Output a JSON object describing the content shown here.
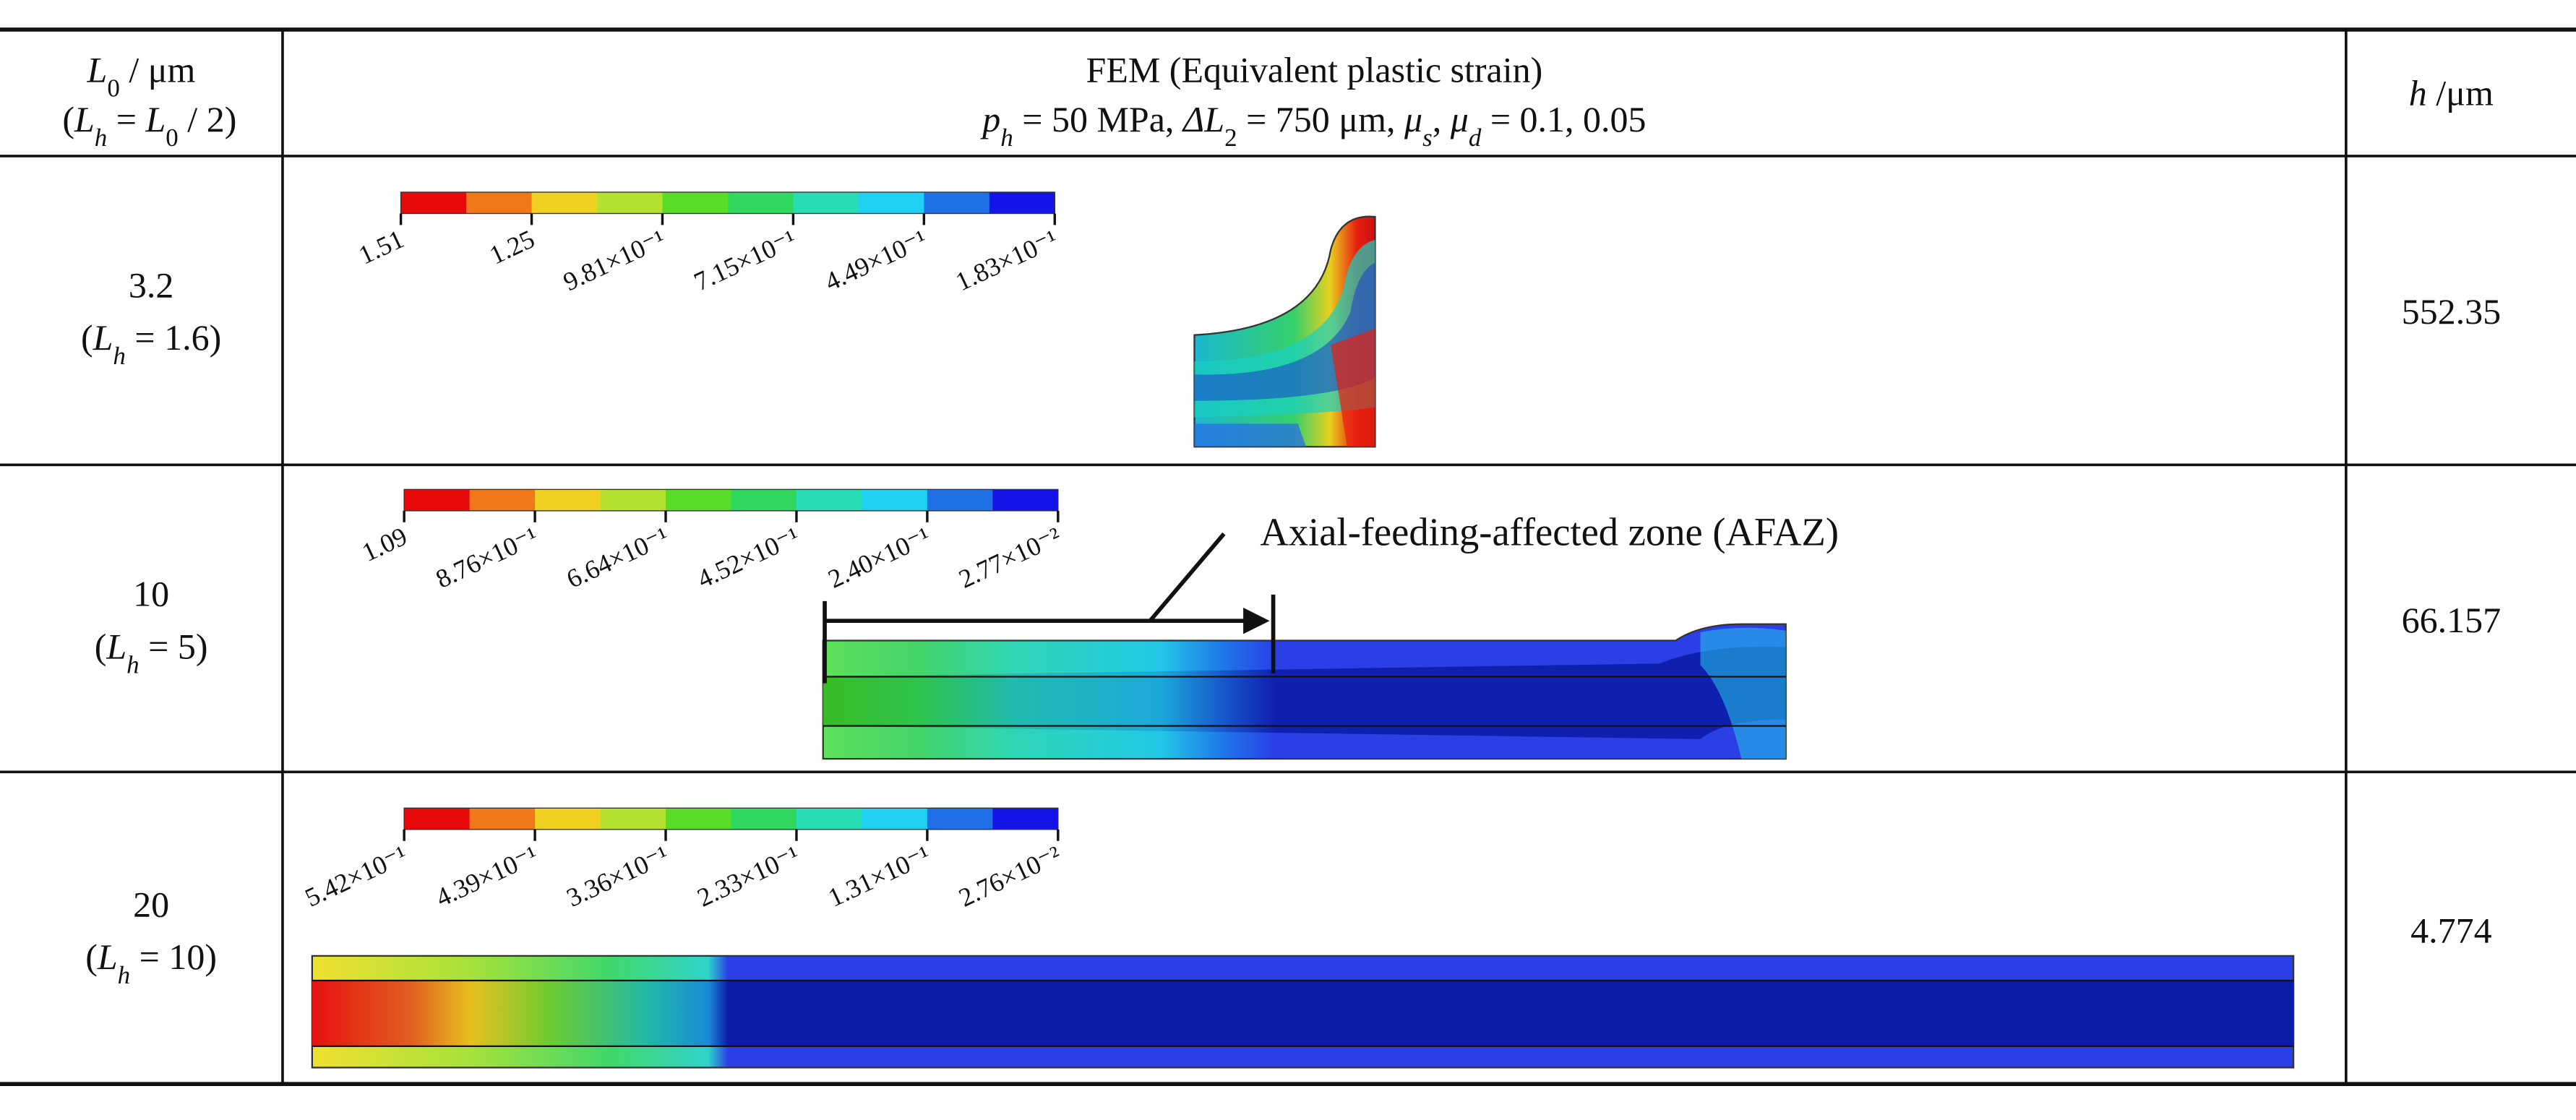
{
  "header": {
    "l0_label": [
      "L",
      "0",
      " / μm"
    ],
    "lh_label": [
      "(",
      "L",
      "h",
      " = ",
      "L",
      "0",
      " / 2)"
    ],
    "fem_title": "FEM (Equivalent plastic strain)",
    "fem_params": [
      "p",
      "h",
      " = 50 MPa, ",
      "ΔL",
      "2",
      " = 750 μm, ",
      "μ",
      "s",
      ", ",
      "μ",
      "d",
      " = 0.1, 0.05"
    ],
    "h_label": [
      "h",
      " /μm"
    ]
  },
  "rows": [
    {
      "l0": "3.2",
      "lh": [
        "(",
        "L",
        "h",
        " = 1.6)"
      ],
      "legend": [
        "1.51",
        "1.25",
        "9.81×10⁻¹",
        "7.15×10⁻¹",
        "4.49×10⁻¹",
        "1.83×10⁻¹"
      ],
      "h": "552.35"
    },
    {
      "l0": "10",
      "lh": [
        "(",
        "L",
        "h",
        " = 5)"
      ],
      "legend": [
        "1.09",
        "8.76×10⁻¹",
        "6.64×10⁻¹",
        "4.52×10⁻¹",
        "2.40×10⁻¹",
        "2.77×10⁻²"
      ],
      "h": "66.157",
      "annotation": "Axial-feeding-affected zone (AFAZ)"
    },
    {
      "l0": "20",
      "lh": [
        "(",
        "L",
        "h",
        " = 10)"
      ],
      "legend": [
        "5.42×10⁻¹",
        "4.39×10⁻¹",
        "3.36×10⁻¹",
        "2.33×10⁻¹",
        "1.31×10⁻¹",
        "2.76×10⁻²"
      ],
      "h": "4.774"
    }
  ]
}
